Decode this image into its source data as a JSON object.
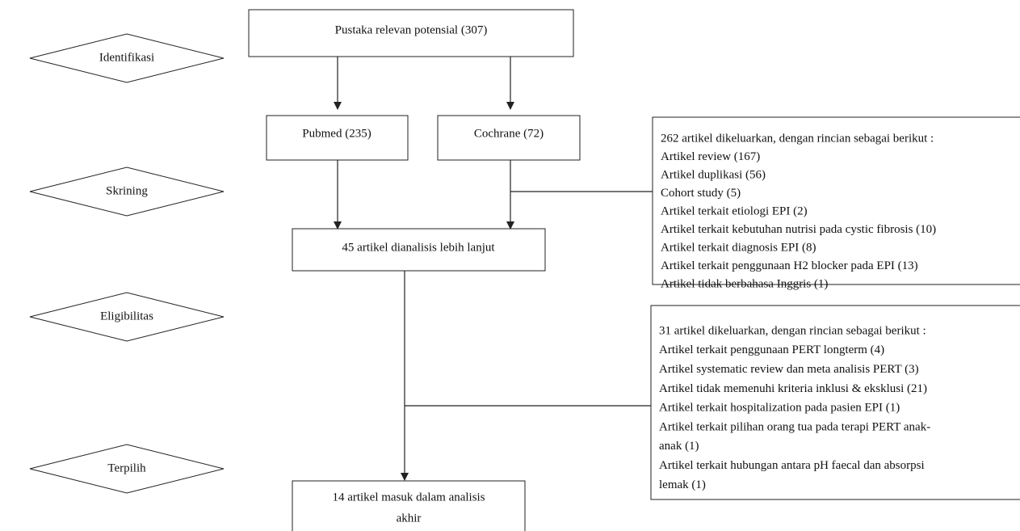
{
  "stages": [
    "Identifikasi",
    "Skrining",
    "Eligibilitas",
    "Terpilih"
  ],
  "nodes": {
    "source": "Pustaka relevan potensial (307)",
    "pubmed": "Pubmed (235)",
    "cochrane": "Cochrane (72)",
    "analyzed": "45 artikel dianalisis lebih lanjut",
    "included": [
      "14 artikel masuk dalam analisis",
      "akhir"
    ]
  },
  "exclusions": [
    {
      "title": "262 artikel dikeluarkan, dengan rincian sebagai berikut :",
      "items": [
        "Artikel review (167)",
        "Artikel duplikasi (56)",
        "Cohort study (5)",
        "Artikel terkait etiologi EPI (2)",
        "Artikel terkait kebutuhan nutrisi pada cystic fibrosis (10)",
        "Artikel terkait diagnosis EPI (8)",
        "Artikel terkait penggunaan H2 blocker pada EPI (13)",
        "Artikel tidak berbahasa Inggris (1)"
      ]
    },
    {
      "title": "31 artikel dikeluarkan, dengan rincian sebagai berikut :",
      "items": [
        "Artikel terkait penggunaan PERT longterm (4)",
        "Artikel systematic review dan meta analisis PERT (3)",
        "Artikel tidak memenuhi kriteria inklusi & eksklusi (21)",
        "Artikel terkait hospitalization pada pasien EPI (1)",
        "Artikel terkait pilihan orang tua pada terapi PERT anak-",
        "anak (1)",
        "Artikel terkait hubungan antara pH faecal dan absorpsi",
        "lemak (1)"
      ]
    }
  ]
}
